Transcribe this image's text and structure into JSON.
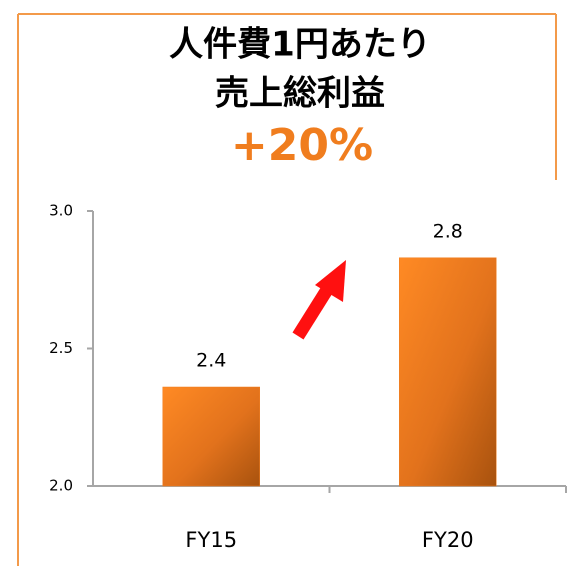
{
  "chart_data": {
    "type": "bar",
    "title": [
      "人件費1円あたり",
      "売上総利益"
    ],
    "annotation": "+20%",
    "categories": [
      "FY15",
      "FY20"
    ],
    "values": [
      2.36,
      2.83
    ],
    "value_labels": [
      "2.4",
      "2.8"
    ],
    "color": "#f07d1e",
    "ylim": [
      2.0,
      3.0
    ],
    "yticks": [
      {
        "value": 2.0,
        "label": "2.0"
      },
      2.5,
      {
        "value": 3.0,
        "label": "3.0"
      }
    ]
  }
}
